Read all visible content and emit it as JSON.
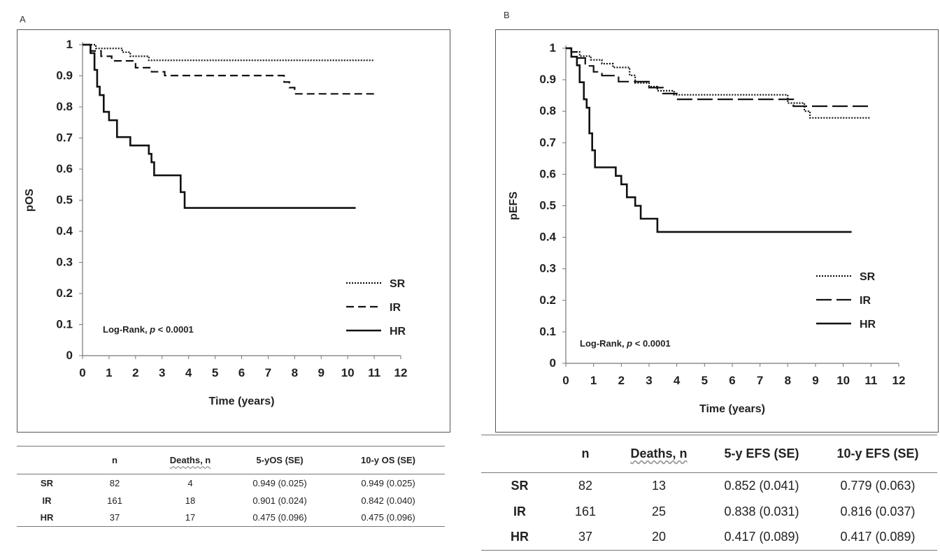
{
  "panel_a": {
    "letter": "A",
    "table": {
      "headers": [
        "",
        "n",
        "Deaths, n",
        "5-yOS (SE)",
        "10-y OS (SE)"
      ],
      "rows": [
        [
          "SR",
          "82",
          "4",
          "0.949 (0.025)",
          "0.949 (0.025)"
        ],
        [
          "IR",
          "161",
          "18",
          "0.901 (0.024)",
          "0.842 (0.040)"
        ],
        [
          "HR",
          "37",
          "17",
          "0.475 (0.096)",
          "0.475 (0.096)"
        ]
      ]
    }
  },
  "panel_b": {
    "letter": "B",
    "table": {
      "headers": [
        "",
        "n",
        "Deaths, n",
        "5-y EFS (SE)",
        "10-y EFS (SE)"
      ],
      "rows": [
        [
          "SR",
          "82",
          "13",
          "0.852 (0.041)",
          "0.779 (0.063)"
        ],
        [
          "IR",
          "161",
          "25",
          "0.838 (0.031)",
          "0.816 (0.037)"
        ],
        [
          "HR",
          "37",
          "20",
          "0.417 (0.089)",
          "0.417 (0.089)"
        ]
      ]
    }
  },
  "chart_data": [
    {
      "type": "line",
      "panel": "A",
      "ylabel": "pOS",
      "xlabel": "Time (years)",
      "xlim": [
        0,
        12
      ],
      "ylim": [
        0,
        1
      ],
      "x_ticks": [
        "0",
        "1",
        "2",
        "3",
        "4",
        "5",
        "6",
        "7",
        "8",
        "9",
        "10",
        "11",
        "12"
      ],
      "y_ticks": [
        "0",
        "0.1",
        "0.2",
        "0.3",
        "0.4",
        "0.5",
        "0.6",
        "0.7",
        "0.8",
        "0.9",
        "1"
      ],
      "annotation": "Log-Rank, p < 0.0001",
      "annotation_parts": [
        "Log-Rank, ",
        "p",
        " < 0.0001"
      ],
      "legend_position": "right",
      "series": [
        {
          "name": "SR",
          "style": "dotted",
          "points": [
            [
              0,
              1
            ],
            [
              0.5,
              1
            ],
            [
              0.5,
              0.988
            ],
            [
              1.5,
              0.988
            ],
            [
              1.5,
              0.976
            ],
            [
              1.8,
              0.976
            ],
            [
              1.8,
              0.963
            ],
            [
              2.5,
              0.963
            ],
            [
              2.5,
              0.95
            ],
            [
              11,
              0.95
            ]
          ]
        },
        {
          "name": "IR",
          "style": "dashed",
          "points": [
            [
              0,
              1
            ],
            [
              0.3,
              1
            ],
            [
              0.3,
              0.98
            ],
            [
              0.7,
              0.98
            ],
            [
              0.7,
              0.963
            ],
            [
              1.1,
              0.963
            ],
            [
              1.1,
              0.948
            ],
            [
              2.0,
              0.948
            ],
            [
              2.0,
              0.926
            ],
            [
              2.6,
              0.926
            ],
            [
              2.6,
              0.913
            ],
            [
              3.1,
              0.913
            ],
            [
              3.1,
              0.901
            ],
            [
              7.6,
              0.901
            ],
            [
              7.6,
              0.88
            ],
            [
              7.8,
              0.88
            ],
            [
              7.8,
              0.862
            ],
            [
              8.0,
              0.862
            ],
            [
              8.0,
              0.842
            ],
            [
              11,
              0.842
            ]
          ]
        },
        {
          "name": "HR",
          "style": "solid",
          "points": [
            [
              0,
              1
            ],
            [
              0.3,
              1
            ],
            [
              0.3,
              0.973
            ],
            [
              0.45,
              0.973
            ],
            [
              0.45,
              0.919
            ],
            [
              0.55,
              0.919
            ],
            [
              0.55,
              0.865
            ],
            [
              0.65,
              0.865
            ],
            [
              0.65,
              0.838
            ],
            [
              0.8,
              0.838
            ],
            [
              0.8,
              0.784
            ],
            [
              1.0,
              0.784
            ],
            [
              1.0,
              0.757
            ],
            [
              1.3,
              0.757
            ],
            [
              1.3,
              0.703
            ],
            [
              1.8,
              0.703
            ],
            [
              1.8,
              0.676
            ],
            [
              2.5,
              0.676
            ],
            [
              2.5,
              0.649
            ],
            [
              2.6,
              0.649
            ],
            [
              2.6,
              0.622
            ],
            [
              2.7,
              0.622
            ],
            [
              2.7,
              0.58
            ],
            [
              3.7,
              0.58
            ],
            [
              3.7,
              0.526
            ],
            [
              3.85,
              0.526
            ],
            [
              3.85,
              0.475
            ],
            [
              10.3,
              0.475
            ]
          ]
        }
      ]
    },
    {
      "type": "line",
      "panel": "B",
      "ylabel": "pEFS",
      "xlabel": "Time (years)",
      "xlim": [
        0,
        12
      ],
      "ylim": [
        0,
        1
      ],
      "x_ticks": [
        "0",
        "1",
        "2",
        "3",
        "4",
        "5",
        "6",
        "7",
        "8",
        "9",
        "10",
        "11",
        "12"
      ],
      "y_ticks": [
        "0",
        "0.1",
        "0.2",
        "0.3",
        "0.4",
        "0.5",
        "0.6",
        "0.7",
        "0.8",
        "0.9",
        "1"
      ],
      "annotation": "Log-Rank, p < 0.0001",
      "annotation_parts": [
        "Log-Rank, ",
        "p",
        " < 0.0001"
      ],
      "legend_position": "right",
      "series": [
        {
          "name": "SR",
          "style": "dotted",
          "points": [
            [
              0,
              1
            ],
            [
              0.2,
              1
            ],
            [
              0.2,
              0.988
            ],
            [
              0.5,
              0.988
            ],
            [
              0.5,
              0.975
            ],
            [
              0.9,
              0.975
            ],
            [
              0.9,
              0.963
            ],
            [
              1.3,
              0.963
            ],
            [
              1.3,
              0.951
            ],
            [
              1.7,
              0.951
            ],
            [
              1.7,
              0.939
            ],
            [
              2.3,
              0.939
            ],
            [
              2.3,
              0.914
            ],
            [
              2.5,
              0.914
            ],
            [
              2.5,
              0.89
            ],
            [
              3.0,
              0.89
            ],
            [
              3.0,
              0.878
            ],
            [
              3.3,
              0.878
            ],
            [
              3.3,
              0.865
            ],
            [
              3.9,
              0.865
            ],
            [
              3.9,
              0.852
            ],
            [
              8.0,
              0.852
            ],
            [
              8.0,
              0.826
            ],
            [
              8.6,
              0.826
            ],
            [
              8.6,
              0.8
            ],
            [
              8.8,
              0.8
            ],
            [
              8.8,
              0.779
            ],
            [
              11,
              0.779
            ]
          ]
        },
        {
          "name": "IR",
          "style": "longdash",
          "points": [
            [
              0,
              1
            ],
            [
              0.2,
              1
            ],
            [
              0.2,
              0.988
            ],
            [
              0.4,
              0.988
            ],
            [
              0.4,
              0.969
            ],
            [
              0.7,
              0.969
            ],
            [
              0.7,
              0.944
            ],
            [
              1.0,
              0.944
            ],
            [
              1.0,
              0.925
            ],
            [
              1.3,
              0.925
            ],
            [
              1.3,
              0.913
            ],
            [
              1.9,
              0.913
            ],
            [
              1.9,
              0.894
            ],
            [
              3.0,
              0.894
            ],
            [
              3.0,
              0.875
            ],
            [
              3.5,
              0.875
            ],
            [
              3.5,
              0.856
            ],
            [
              4.0,
              0.856
            ],
            [
              4.0,
              0.838
            ],
            [
              8.2,
              0.838
            ],
            [
              8.2,
              0.816
            ],
            [
              11,
              0.816
            ]
          ]
        },
        {
          "name": "HR",
          "style": "solid",
          "points": [
            [
              0,
              1
            ],
            [
              0.2,
              1
            ],
            [
              0.2,
              0.973
            ],
            [
              0.4,
              0.973
            ],
            [
              0.4,
              0.946
            ],
            [
              0.5,
              0.946
            ],
            [
              0.5,
              0.892
            ],
            [
              0.65,
              0.892
            ],
            [
              0.65,
              0.838
            ],
            [
              0.75,
              0.838
            ],
            [
              0.75,
              0.811
            ],
            [
              0.85,
              0.811
            ],
            [
              0.85,
              0.73
            ],
            [
              0.95,
              0.73
            ],
            [
              0.95,
              0.676
            ],
            [
              1.05,
              0.676
            ],
            [
              1.05,
              0.622
            ],
            [
              1.8,
              0.622
            ],
            [
              1.8,
              0.595
            ],
            [
              2.0,
              0.595
            ],
            [
              2.0,
              0.568
            ],
            [
              2.2,
              0.568
            ],
            [
              2.2,
              0.527
            ],
            [
              2.5,
              0.527
            ],
            [
              2.5,
              0.5
            ],
            [
              2.7,
              0.5
            ],
            [
              2.7,
              0.459
            ],
            [
              3.3,
              0.459
            ],
            [
              3.3,
              0.417
            ],
            [
              10.3,
              0.417
            ]
          ]
        }
      ]
    }
  ]
}
